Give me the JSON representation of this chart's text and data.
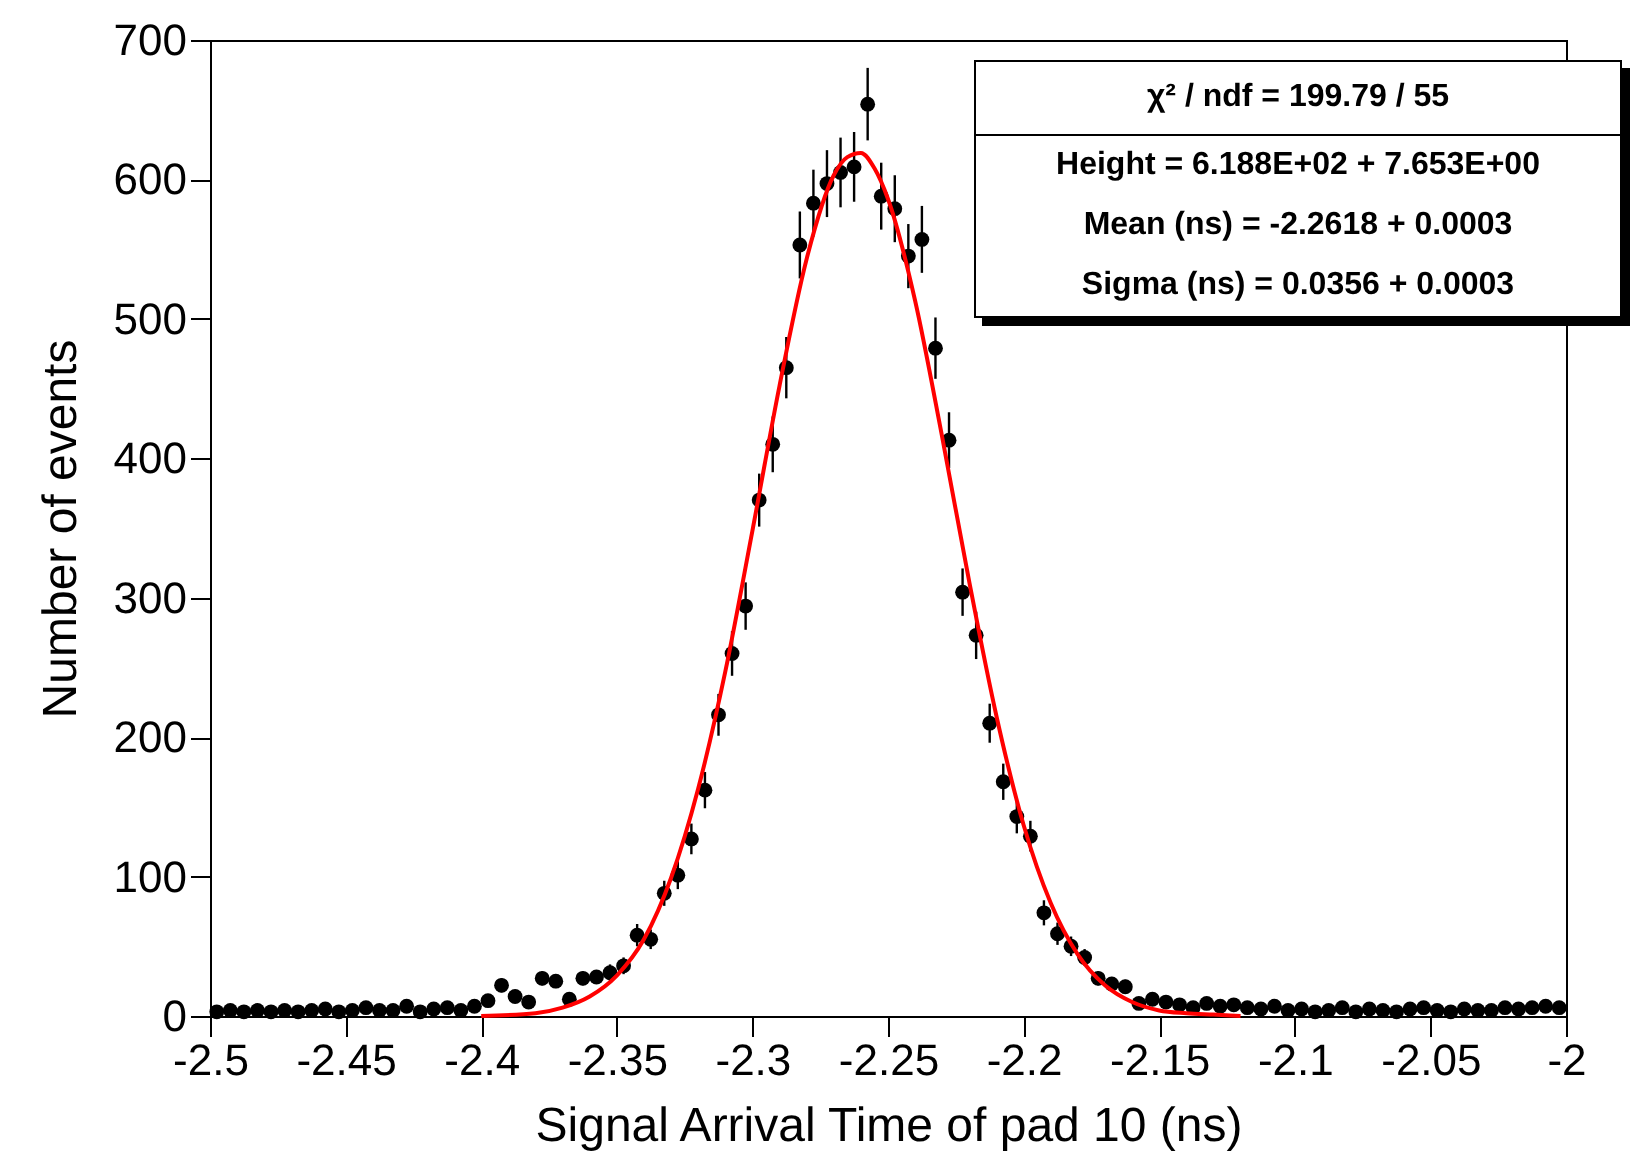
{
  "chart_data": {
    "type": "scatter",
    "xlabel": "Signal Arrival Time of pad 10 (ns)",
    "ylabel": "Number of events",
    "xlim": [
      -2.5,
      -2
    ],
    "xticks": [
      -2.5,
      -2.45,
      -2.4,
      -2.35,
      -2.3,
      -2.25,
      -2.2,
      -2.15,
      -2.1,
      -2.05,
      -2
    ],
    "ylim": [
      0,
      700
    ],
    "yticks": [
      0,
      100,
      200,
      300,
      400,
      500,
      600,
      700
    ],
    "grid": false,
    "marker": "circle",
    "annotations": [
      "χ² / ndf = 199.79 / 55",
      "Height = 6.188E+02 + 7.653E+00",
      "Mean (ns) = -2.2618 + 0.0003",
      "Sigma (ns) = 0.0356 + 0.0003"
    ],
    "series": [
      {
        "color": "#000000",
        "x": [
          -2.4975,
          -2.4925,
          -2.4875,
          -2.4825,
          -2.4775,
          -2.4725,
          -2.4675,
          -2.4625,
          -2.4575,
          -2.4525,
          -2.4475,
          -2.4425,
          -2.4375,
          -2.4325,
          -2.4275,
          -2.4225,
          -2.4175,
          -2.4125,
          -2.4075,
          -2.4025,
          -2.3975,
          -2.3925,
          -2.3875,
          -2.3825,
          -2.3775,
          -2.3725,
          -2.3675,
          -2.3625,
          -2.3575,
          -2.3525,
          -2.3475,
          -2.3425,
          -2.3375,
          -2.3325,
          -2.3275,
          -2.3225,
          -2.3175,
          -2.3125,
          -2.3075,
          -2.3025,
          -2.2975,
          -2.2925,
          -2.2875,
          -2.2825,
          -2.2775,
          -2.2725,
          -2.2675,
          -2.2625,
          -2.2575,
          -2.2525,
          -2.2475,
          -2.2425,
          -2.2375,
          -2.2325,
          -2.2275,
          -2.2225,
          -2.2175,
          -2.2125,
          -2.2075,
          -2.2025,
          -2.1975,
          -2.1925,
          -2.1875,
          -2.1825,
          -2.1775,
          -2.1725,
          -2.1675,
          -2.1625,
          -2.1575,
          -2.1525,
          -2.1475,
          -2.1425,
          -2.1375,
          -2.1325,
          -2.1275,
          -2.1225,
          -2.1175,
          -2.1125,
          -2.1075,
          -2.1025,
          -2.0975,
          -2.0925,
          -2.0875,
          -2.0825,
          -2.0775,
          -2.0725,
          -2.0675,
          -2.0625,
          -2.0575,
          -2.0525,
          -2.0475,
          -2.0425,
          -2.0375,
          -2.0325,
          -2.0275,
          -2.0225,
          -2.0175,
          -2.0125,
          -2.0075,
          -2.0025
        ],
        "values": [
          3,
          4,
          3,
          4,
          3,
          4,
          3,
          4,
          5,
          3,
          4,
          6,
          4,
          4,
          7,
          3,
          5,
          6,
          4,
          7,
          11,
          22,
          14,
          10,
          27,
          25,
          12,
          27,
          28,
          31,
          36,
          58,
          55,
          88,
          101,
          127,
          162,
          216,
          260,
          294,
          370,
          410,
          465,
          553,
          583,
          597,
          605,
          609,
          654,
          588,
          579,
          545,
          557,
          479,
          413,
          304,
          273,
          210,
          168,
          143,
          129,
          74,
          59,
          50,
          42,
          27,
          23,
          21,
          9,
          12,
          10,
          8,
          6,
          9,
          7,
          8,
          6,
          5,
          7,
          4,
          5,
          3,
          4,
          6,
          3,
          5,
          4,
          3,
          5,
          6,
          4,
          3,
          5,
          4,
          4,
          6,
          5,
          6,
          7,
          6
        ],
        "errors": [
          2,
          2,
          2,
          2,
          2,
          2,
          2,
          2,
          2,
          2,
          2,
          2,
          2,
          2,
          3,
          2,
          2,
          2,
          2,
          3,
          3,
          5,
          4,
          3,
          5,
          5,
          3,
          5,
          5,
          6,
          6,
          8,
          7,
          9,
          10,
          11,
          13,
          15,
          16,
          17,
          19,
          20,
          22,
          24,
          24,
          24,
          25,
          25,
          26,
          24,
          24,
          23,
          24,
          22,
          20,
          17,
          17,
          14,
          13,
          12,
          11,
          9,
          8,
          7,
          6,
          5,
          5,
          5,
          3,
          3,
          3,
          3,
          2,
          3,
          3,
          3,
          2,
          2,
          3,
          2,
          2,
          2,
          2,
          2,
          2,
          2,
          2,
          2,
          2,
          2,
          2,
          2,
          2,
          2,
          2,
          2,
          2,
          2,
          3,
          2
        ]
      },
      {
        "type": "line",
        "color": "#ff0000",
        "marker": "none",
        "x": [
          -2.4,
          -2.38,
          -2.37,
          -2.36,
          -2.35,
          -2.34,
          -2.33,
          -2.32,
          -2.31,
          -2.3,
          -2.29,
          -2.28,
          -2.27,
          -2.265,
          -2.26,
          -2.255,
          -2.25,
          -2.24,
          -2.23,
          -2.22,
          -2.21,
          -2.2,
          -2.19,
          -2.18,
          -2.17,
          -2.16,
          -2.15,
          -2.14,
          -2.13,
          -2.12
        ],
        "values": [
          0,
          2,
          6,
          14,
          29,
          55,
          99,
          163,
          247,
          348,
          452,
          543,
          603,
          616,
          619,
          608,
          586,
          513,
          415,
          311,
          215,
          137,
          81,
          44,
          22,
          10,
          4,
          2,
          1,
          0
        ]
      }
    ]
  }
}
